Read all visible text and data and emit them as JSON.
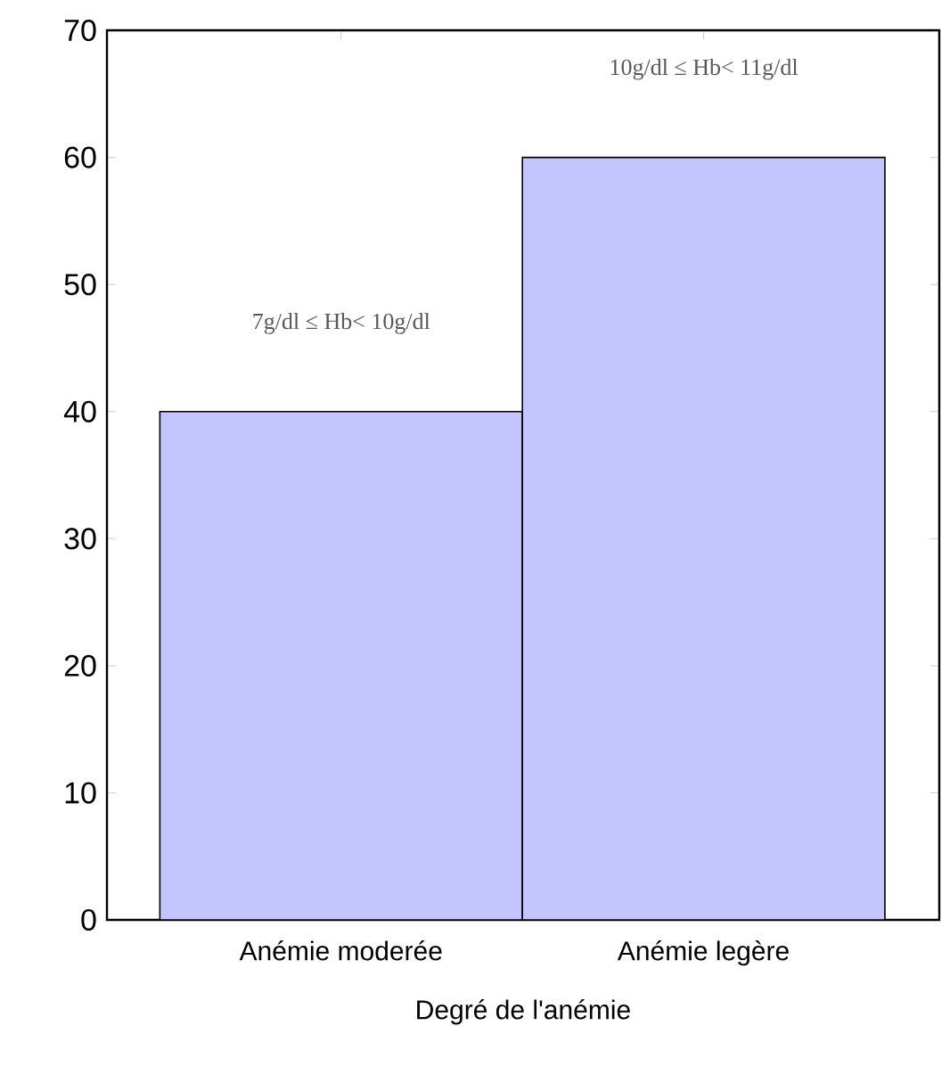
{
  "chart_data": {
    "type": "bar",
    "categories": [
      "Anémie moderée",
      "Anémie legère"
    ],
    "values": [
      40,
      60
    ],
    "color": "#c4c4ff",
    "xlabel": "Degré de l'anémie",
    "ylim": [
      0,
      70
    ],
    "yticks": [
      0,
      10,
      20,
      30,
      40,
      50,
      60,
      70
    ],
    "grid": false,
    "annotations": [
      "7g/dl ≤ Hb< 10g/dl",
      "10g/dl ≤ Hb< 11g/dl"
    ]
  }
}
